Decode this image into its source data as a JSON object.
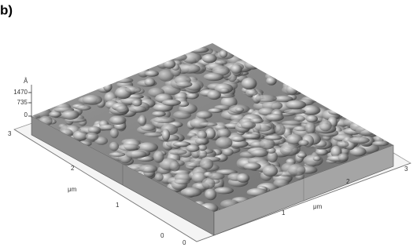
{
  "panel_label": "b)",
  "z_axis": {
    "unit": "Å",
    "ticks": [
      "1470",
      "735",
      "0"
    ]
  },
  "left_axis": {
    "label": "μm",
    "ticks": [
      "3",
      "2",
      "1",
      "0"
    ]
  },
  "right_axis": {
    "label": "μm",
    "ticks": [
      "0",
      "1",
      "2",
      "3"
    ]
  }
}
